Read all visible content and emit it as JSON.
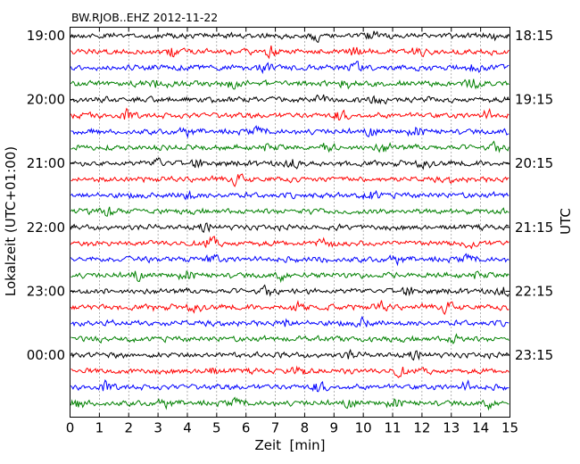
{
  "chart_data": {
    "type": "line",
    "title": "BW.RJOB..EHZ 2012-11-22",
    "xlabel": "Zeit  [min]",
    "ylabel_left": "Lokalzeit (UTC+01:00)",
    "ylabel_right": "UTC",
    "xlim": [
      0,
      15
    ],
    "x_ticks": [
      "0",
      "1",
      "2",
      "3",
      "4",
      "5",
      "6",
      "7",
      "8",
      "9",
      "10",
      "11",
      "12",
      "13",
      "14",
      "15"
    ],
    "left_ticks": [
      "19:00",
      "20:00",
      "21:00",
      "22:00",
      "23:00",
      "00:00"
    ],
    "right_ticks": [
      "18:15",
      "19:15",
      "20:15",
      "21:15",
      "22:15",
      "23:15"
    ],
    "trace_colors": [
      "#000000",
      "#ff0000",
      "#0000ff",
      "#008000"
    ],
    "trace_count": 24,
    "minutes_per_trace": 15,
    "grid": "vertical-dotted"
  }
}
